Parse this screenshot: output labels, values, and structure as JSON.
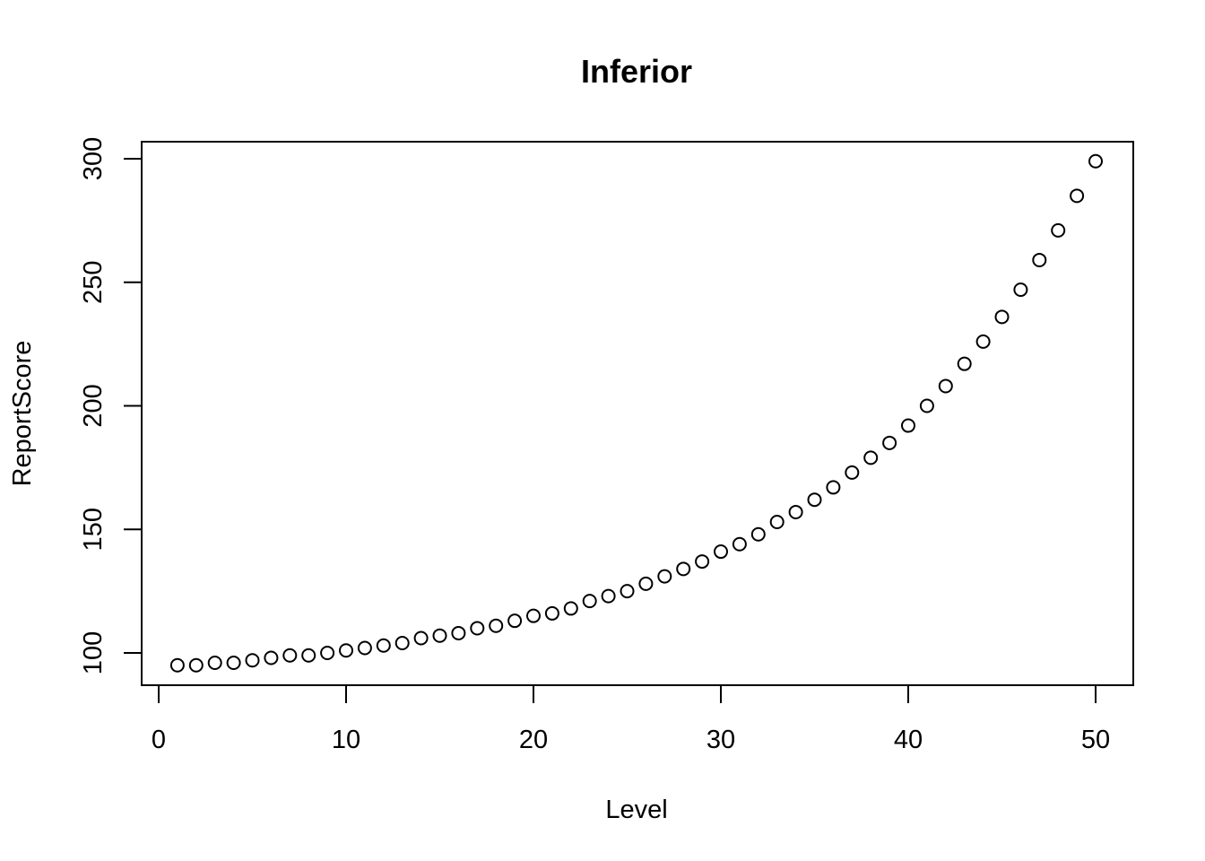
{
  "chart_data": {
    "type": "scatter",
    "title": "Inferior",
    "xlabel": "Level",
    "ylabel": "ReportScore",
    "xlim": [
      0,
      50
    ],
    "ylim": [
      95,
      299
    ],
    "x_ticks": [
      0,
      10,
      20,
      30,
      40,
      50
    ],
    "y_ticks": [
      100,
      150,
      200,
      250,
      300
    ],
    "x_tick_labels": [
      "0",
      "10",
      "20",
      "30",
      "40",
      "50"
    ],
    "y_tick_labels": [
      "100",
      "150",
      "200",
      "250",
      "300"
    ],
    "grid": false,
    "marker": "open-circle",
    "point_color": "#000000",
    "series": [
      {
        "x": [
          1,
          2,
          3,
          4,
          5,
          6,
          7,
          8,
          9,
          10,
          11,
          12,
          13,
          14,
          15,
          16,
          17,
          18,
          19,
          20,
          21,
          22,
          23,
          24,
          25,
          26,
          27,
          28,
          29,
          30,
          31,
          32,
          33,
          34,
          35,
          36,
          37,
          38,
          39,
          40,
          41,
          42,
          43,
          44,
          45,
          46,
          47,
          48,
          49,
          50
        ],
        "y": [
          95,
          95,
          96,
          96,
          97,
          98,
          99,
          99,
          100,
          101,
          102,
          103,
          104,
          106,
          107,
          108,
          110,
          111,
          113,
          115,
          116,
          118,
          121,
          123,
          125,
          128,
          131,
          134,
          137,
          141,
          144,
          148,
          153,
          157,
          162,
          167,
          173,
          179,
          185,
          192,
          200,
          208,
          217,
          226,
          236,
          247,
          259,
          271,
          285,
          299
        ]
      }
    ]
  }
}
